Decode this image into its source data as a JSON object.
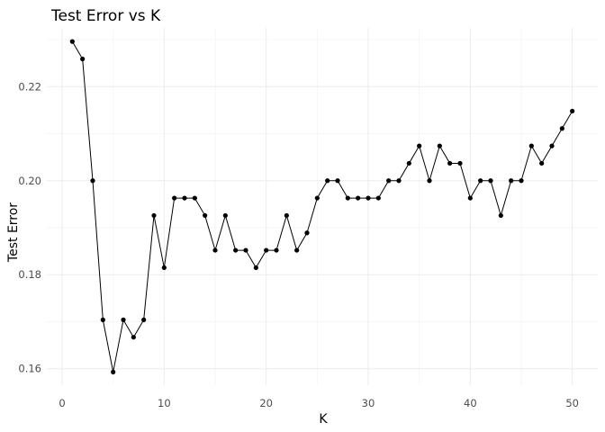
{
  "chart_data": {
    "type": "line",
    "title": "Test Error vs K",
    "xlabel": "K",
    "ylabel": "Test Error",
    "xlim": [
      -1.5,
      52.5
    ],
    "ylim": [
      0.1565,
      0.2325
    ],
    "x_ticks": [
      0,
      10,
      20,
      30,
      40,
      50
    ],
    "x_minor_ticks": [
      5,
      15,
      25,
      35,
      45
    ],
    "y_ticks": [
      0.16,
      0.18,
      0.2,
      0.22
    ],
    "y_tick_labels": [
      "0.16",
      "0.18",
      "0.20",
      "0.22"
    ],
    "y_minor_ticks": [
      0.17,
      0.19,
      0.21,
      0.23
    ],
    "grid": true,
    "legend": false,
    "x": [
      1,
      2,
      3,
      4,
      5,
      6,
      7,
      8,
      9,
      10,
      11,
      12,
      13,
      14,
      15,
      16,
      17,
      18,
      19,
      20,
      21,
      22,
      23,
      24,
      25,
      26,
      27,
      28,
      29,
      30,
      31,
      32,
      33,
      34,
      35,
      36,
      37,
      38,
      39,
      40,
      41,
      42,
      43,
      44,
      45,
      46,
      47,
      48,
      49,
      50
    ],
    "y": [
      0.2296,
      0.2259,
      0.2,
      0.1704,
      0.1593,
      0.1704,
      0.1667,
      0.1704,
      0.1926,
      0.1815,
      0.1963,
      0.1963,
      0.1963,
      0.1926,
      0.1852,
      0.1926,
      0.1852,
      0.1852,
      0.1815,
      0.1852,
      0.1852,
      0.1926,
      0.1852,
      0.1889,
      0.1963,
      0.2,
      0.2,
      0.1963,
      0.1963,
      0.1963,
      0.1963,
      0.2,
      0.2,
      0.2037,
      0.2074,
      0.2,
      0.2074,
      0.2037,
      0.2037,
      0.1963,
      0.2,
      0.2,
      0.1926,
      0.2,
      0.2,
      0.2074,
      0.2037,
      0.2074,
      0.2111,
      0.2148
    ]
  }
}
